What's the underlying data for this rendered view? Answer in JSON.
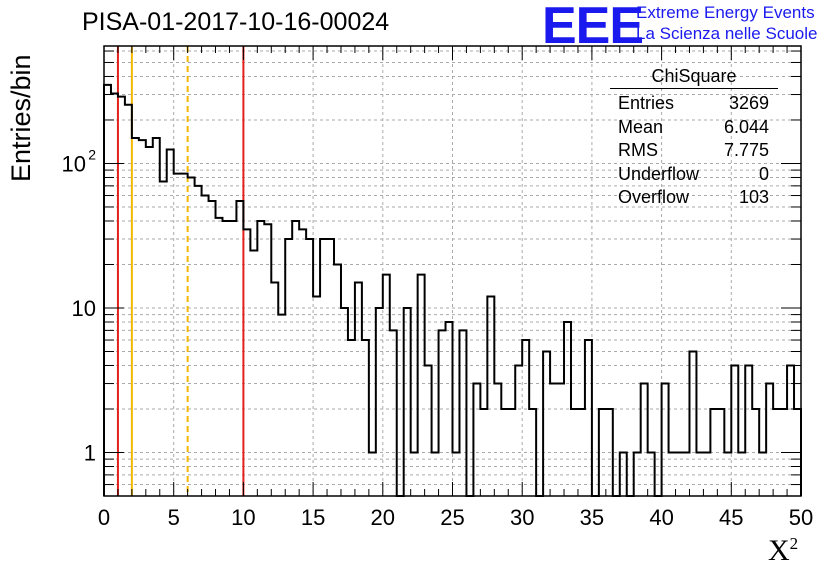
{
  "header": {
    "title": "PISA-01-2017-10-16-00024"
  },
  "logo": {
    "mark": "EEE",
    "line1": "Extreme Energy Events",
    "line2": "La Scienza nelle Scuole",
    "color": "#1a1aee"
  },
  "stats": {
    "title": "ChiSquare",
    "rows": [
      {
        "label": "Entries",
        "value": "3269"
      },
      {
        "label": "Mean",
        "value": "6.044"
      },
      {
        "label": "RMS",
        "value": "7.775"
      },
      {
        "label": "Underflow",
        "value": "0"
      },
      {
        "label": "Overflow",
        "value": "103"
      }
    ]
  },
  "chart_data": {
    "type": "histogram",
    "title": "PISA-01-2017-10-16-00024",
    "xlabel": "X²",
    "ylabel": "Entries/bin",
    "xlim": [
      0,
      50
    ],
    "ylim": [
      0.5,
      650
    ],
    "yscale": "log",
    "grid": true,
    "bin_width": 0.5,
    "x_ticks": [
      "0",
      "5",
      "10",
      "15",
      "20",
      "25",
      "30",
      "35",
      "40",
      "45",
      "50"
    ],
    "y_ticks": [
      {
        "value": 1,
        "label": "1"
      },
      {
        "value": 10,
        "label": "10"
      },
      {
        "value": 100,
        "label": "10",
        "exponent": "2"
      }
    ],
    "values": [
      350,
      305,
      290,
      255,
      150,
      145,
      130,
      150,
      75,
      125,
      85,
      85,
      80,
      70,
      60,
      55,
      42,
      40,
      40,
      55,
      35,
      25,
      40,
      38,
      15,
      9,
      30,
      40,
      35,
      30,
      12,
      30,
      30,
      20,
      10,
      6,
      15,
      6,
      1,
      10,
      17,
      7,
      0,
      10,
      1,
      17,
      4,
      1,
      7,
      8,
      1,
      7,
      0,
      3,
      2,
      12,
      3,
      2,
      2,
      4,
      6,
      2,
      0,
      5,
      3,
      3,
      8,
      2,
      2,
      6,
      0,
      2,
      2,
      0,
      1,
      0,
      1,
      3,
      1,
      0,
      3,
      1,
      1,
      1,
      5,
      1,
      1,
      2,
      2,
      1,
      4,
      1,
      4,
      2,
      1,
      3,
      2,
      2,
      4,
      2
    ],
    "vertical_lines": [
      {
        "x": 1,
        "color": "#e3201b",
        "style": "solid"
      },
      {
        "x": 2,
        "color": "#f5b800",
        "style": "solid"
      },
      {
        "x": 6,
        "color": "#f5b800",
        "style": "dashed"
      },
      {
        "x": 10,
        "color": "#e3201b",
        "style": "solid"
      }
    ]
  }
}
